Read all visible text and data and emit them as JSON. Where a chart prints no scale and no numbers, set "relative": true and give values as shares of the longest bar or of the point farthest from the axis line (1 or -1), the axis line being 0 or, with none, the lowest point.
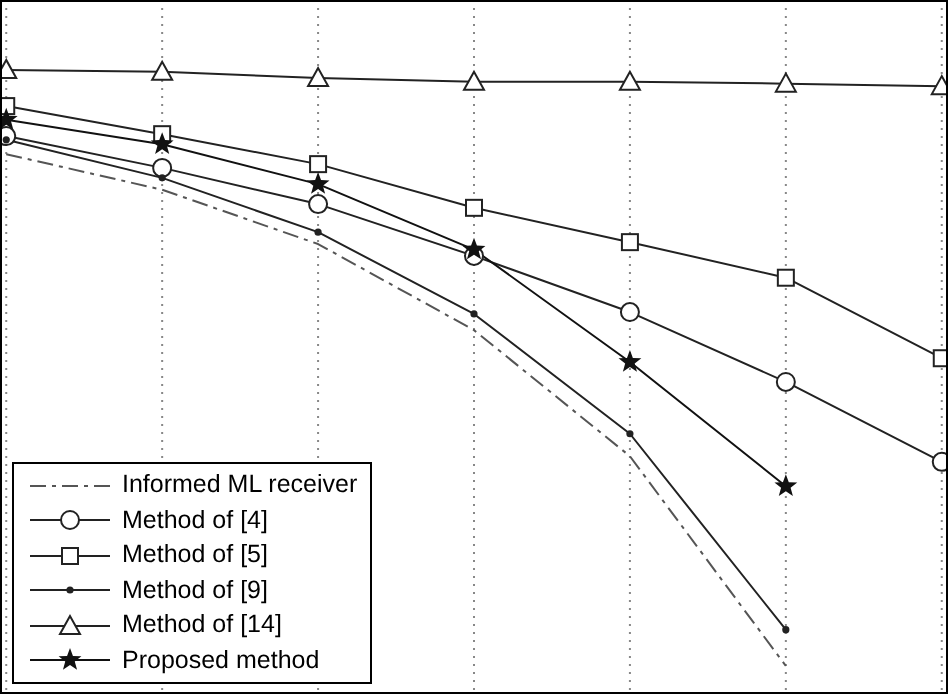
{
  "chart_data": {
    "type": "line",
    "relative": true,
    "categories": [
      null,
      null,
      null,
      null,
      null,
      null,
      null
    ],
    "grid": "x",
    "legend": "bottom left",
    "series": [
      {
        "name": "Informed ML receiver",
        "color": "#555555",
        "line_style": "dashed",
        "marker": "none",
        "values": [
          0.865,
          0.808,
          0.721,
          0.583,
          0.381,
          0.045,
          null
        ]
      },
      {
        "name": "Method of [4]",
        "color": "#222222",
        "marker": "circle",
        "values": [
          0.894,
          0.843,
          0.785,
          0.702,
          0.612,
          0.5,
          0.372
        ]
      },
      {
        "name": "Method of [5]",
        "color": "#222222",
        "marker": "square",
        "values": [
          0.942,
          0.897,
          0.849,
          0.779,
          0.724,
          0.667,
          0.538
        ]
      },
      {
        "name": "Method of [9]",
        "color": "#222222",
        "marker": "point",
        "values": [
          0.888,
          0.827,
          0.74,
          0.609,
          0.417,
          0.103,
          null
        ]
      },
      {
        "name": "Method of [14]",
        "color": "#222222",
        "marker": "triangle",
        "values": [
          1,
          0.997,
          0.987,
          0.981,
          0.981,
          0.978,
          0.974
        ]
      },
      {
        "name": "Proposed method",
        "color": "#111111",
        "marker": "star",
        "values": [
          0.92,
          0.881,
          0.817,
          0.712,
          0.532,
          0.333,
          null
        ]
      }
    ]
  }
}
